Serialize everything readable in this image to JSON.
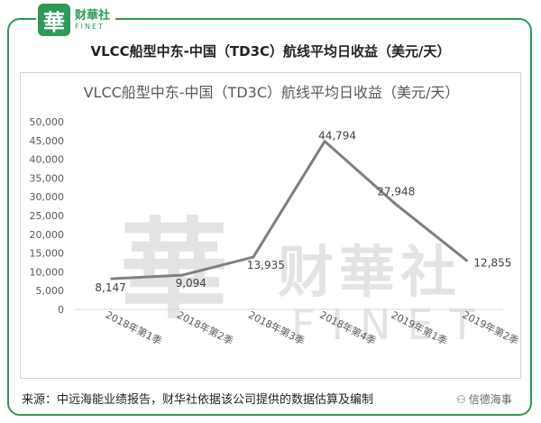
{
  "logo": {
    "mark": "華",
    "name_cn": "财華社",
    "name_en": "FINET"
  },
  "heading": "VLCC船型中东-中国（TD3C）航线平均日收益（美元/天）",
  "watermark": {
    "mark": "華",
    "name_cn": "财華社",
    "name_en": "FINET"
  },
  "source": "来源：中远海能业绩报告，财华社依据该公司提供的数据估算及编制",
  "credit": {
    "icon": "wechat-icon",
    "text": "信德海事"
  },
  "colors": {
    "frame": "#2e9a5a",
    "line": "#7f7f7f",
    "axis_text": "#595959",
    "grid": "#d9d9d9"
  },
  "chart_data": {
    "type": "line",
    "title": "VLCC船型中东-中国（TD3C）航线平均日收益（美元/天）",
    "categories": [
      "2018年第1季",
      "2018年第2季",
      "2018年第3季",
      "2018年第4季",
      "2019年第1季",
      "2019年第2季"
    ],
    "series": [
      {
        "values": [
          8147,
          9094,
          13935,
          44794,
          27948,
          12855
        ],
        "labels": [
          "8,147",
          "9,094",
          "13,935",
          "44,794",
          "27,948",
          "12,855"
        ]
      }
    ],
    "yticks": [
      "0",
      "5,000",
      "10,000",
      "15,000",
      "20,000",
      "25,000",
      "30,000",
      "35,000",
      "40,000",
      "45,000",
      "50,000"
    ],
    "ylim": [
      0,
      50000
    ],
    "grid": false,
    "legend": "none"
  }
}
